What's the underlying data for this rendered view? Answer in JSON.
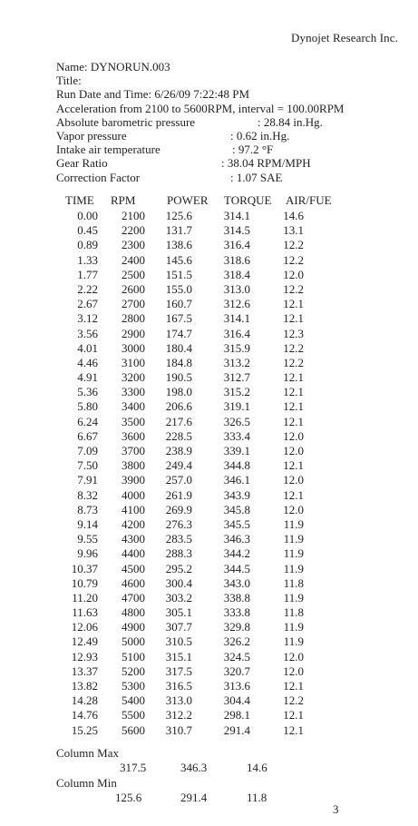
{
  "header": {
    "company": "Dynojet Research Inc."
  },
  "meta": {
    "name": "Name: DYNORUN.003",
    "title": "Title:",
    "run_date": "Run Date and Time: 6/26/09 7:22:48 PM",
    "acceleration": "Acceleration from   2100 to  5600RPM, interval  = 100.00RPM",
    "baro_label": "Absolute barometric pressure",
    "baro_value": ":  28.84 in.Hg.",
    "vapor_label": "Vapor pressure",
    "vapor_value": ":   0.62 in.Hg.",
    "intake_label": "Intake air temperature",
    "intake_value": ":   97.2 °F",
    "gear_label": "Gear Ratio",
    "gear_value": ":  38.04 RPM/MPH",
    "corr_label": "Correction Factor",
    "corr_value": ":   1.07 SAE"
  },
  "table": {
    "headers": [
      "TIME",
      "RPM",
      "POWER",
      "TORQUE",
      "AIR/FUE"
    ],
    "rows": [
      [
        "0.00",
        "2100",
        "125.6",
        "314.1",
        "14.6"
      ],
      [
        "0.45",
        "2200",
        "131.7",
        "314.5",
        "13.1"
      ],
      [
        "0.89",
        "2300",
        "138.6",
        "316.4",
        "12.2"
      ],
      [
        "1.33",
        "2400",
        "145.6",
        "318.6",
        "12.2"
      ],
      [
        "1.77",
        "2500",
        "151.5",
        "318.4",
        "12.0"
      ],
      [
        "2.22",
        "2600",
        "155.0",
        "313.0",
        "12.2"
      ],
      [
        "2.67",
        "2700",
        "160.7",
        "312.6",
        "12.1"
      ],
      [
        "3.12",
        "2800",
        "167.5",
        "314.1",
        "12.1"
      ],
      [
        "3.56",
        "2900",
        "174.7",
        "316.4",
        "12.3"
      ],
      [
        "4.01",
        "3000",
        "180.4",
        "315.9",
        "12.2"
      ],
      [
        "4.46",
        "3100",
        "184.8",
        "313.2",
        "12.2"
      ],
      [
        "4.91",
        "3200",
        "190.5",
        "312.7",
        "12.1"
      ],
      [
        "5.36",
        "3300",
        "198.0",
        "315.2",
        "12.1"
      ],
      [
        "5.80",
        "3400",
        "206.6",
        "319.1",
        "12.1"
      ],
      [
        "6.24",
        "3500",
        "217.6",
        "326.5",
        "12.1"
      ],
      [
        "6.67",
        "3600",
        "228.5",
        "333.4",
        "12.0"
      ],
      [
        "7.09",
        "3700",
        "238.9",
        "339.1",
        "12.0"
      ],
      [
        "7.50",
        "3800",
        "249.4",
        "344.8",
        "12.1"
      ],
      [
        "7.91",
        "3900",
        "257.0",
        "346.1",
        "12.0"
      ],
      [
        "8.32",
        "4000",
        "261.9",
        "343.9",
        "12.1"
      ],
      [
        "8.73",
        "4100",
        "269.9",
        "345.8",
        "12.0"
      ],
      [
        "9.14",
        "4200",
        "276.3",
        "345.5",
        "11.9"
      ],
      [
        "9.55",
        "4300",
        "283.5",
        "346.3",
        "11.9"
      ],
      [
        "9.96",
        "4400",
        "288.3",
        "344.2",
        "11.9"
      ],
      [
        "10.37",
        "4500",
        "295.2",
        "344.5",
        "11.9"
      ],
      [
        "10.79",
        "4600",
        "300.4",
        "343.0",
        "11.8"
      ],
      [
        "11.20",
        "4700",
        "303.2",
        "338.8",
        "11.9"
      ],
      [
        "11.63",
        "4800",
        "305.1",
        "333.8",
        "11.8"
      ],
      [
        "12.06",
        "4900",
        "307.7",
        "329.8",
        "11.9"
      ],
      [
        "12.49",
        "5000",
        "310.5",
        "326.2",
        "11.9"
      ],
      [
        "12.93",
        "5100",
        "315.1",
        "324.5",
        "12.0"
      ],
      [
        "13.37",
        "5200",
        "317.5",
        "320.7",
        "12.0"
      ],
      [
        "13.82",
        "5300",
        "316.5",
        "313.6",
        "12.1"
      ],
      [
        "14.28",
        "5400",
        "313.0",
        "304.4",
        "12.2"
      ],
      [
        "14.76",
        "5500",
        "312.2",
        "298.1",
        "12.1"
      ],
      [
        "15.25",
        "5600",
        "310.7",
        "291.4",
        "12.1"
      ]
    ]
  },
  "summary": {
    "max_label": "Column Max",
    "max_values": [
      "317.5",
      "346.3",
      "14.6"
    ],
    "min_label": "Column Min",
    "min_values": [
      "125.6",
      "291.4",
      "11.8"
    ]
  },
  "page_number": "3"
}
